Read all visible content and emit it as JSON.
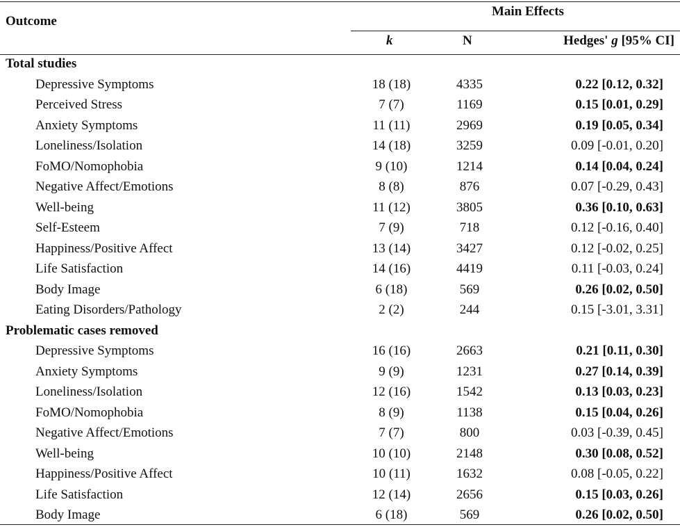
{
  "header": {
    "outcome": "Outcome",
    "main_effects": "Main Effects",
    "k": "k",
    "n": "N",
    "g_prefix": "Hedges' ",
    "g_italic": "g",
    "g_suffix": " [95% CI]"
  },
  "rows": [
    {
      "type": "section",
      "outcome": "Total studies"
    },
    {
      "type": "data",
      "outcome": "Depressive Symptoms",
      "k": "18 (18)",
      "n": "4335",
      "g": "0.22 [0.12, 0.32]",
      "significant": true
    },
    {
      "type": "data",
      "outcome": "Perceived Stress",
      "k": "7 (7)",
      "n": "1169",
      "g": "0.15 [0.01, 0.29]",
      "significant": true
    },
    {
      "type": "data",
      "outcome": "Anxiety Symptoms",
      "k": "11 (11)",
      "n": "2969",
      "g": "0.19 [0.05, 0.34]",
      "significant": true
    },
    {
      "type": "data",
      "outcome": "Loneliness/Isolation",
      "k": "14 (18)",
      "n": "3259",
      "g": "0.09 [-0.01, 0.20]",
      "significant": false
    },
    {
      "type": "data",
      "outcome": "FoMO/Nomophobia",
      "k": "9 (10)",
      "n": "1214",
      "g": "0.14 [0.04, 0.24]",
      "significant": true
    },
    {
      "type": "data",
      "outcome": "Negative Affect/Emotions",
      "k": "8 (8)",
      "n": "876",
      "g": "0.07 [-0.29, 0.43]",
      "significant": false
    },
    {
      "type": "data",
      "outcome": "Well-being",
      "k": "11 (12)",
      "n": "3805",
      "g": "0.36 [0.10, 0.63]",
      "significant": true
    },
    {
      "type": "data",
      "outcome": "Self-Esteem",
      "k": "7 (9)",
      "n": "718",
      "g": "0.12 [-0.16, 0.40]",
      "significant": false
    },
    {
      "type": "data",
      "outcome": "Happiness/Positive Affect",
      "k": "13 (14)",
      "n": "3427",
      "g": "0.12 [-0.02, 0.25]",
      "significant": false
    },
    {
      "type": "data",
      "outcome": "Life Satisfaction",
      "k": "14 (16)",
      "n": "4419",
      "g": "0.11 [-0.03, 0.24]",
      "significant": false
    },
    {
      "type": "data",
      "outcome": "Body Image",
      "k": "6 (18)",
      "n": "569",
      "g": "0.26 [0.02, 0.50]",
      "significant": true
    },
    {
      "type": "data",
      "outcome": "Eating Disorders/Pathology",
      "k": "2 (2)",
      "n": "244",
      "g": "0.15 [-3.01, 3.31]",
      "significant": false
    },
    {
      "type": "section",
      "outcome": "Problematic cases removed"
    },
    {
      "type": "data",
      "outcome": "Depressive Symptoms",
      "k": "16 (16)",
      "n": "2663",
      "g": "0.21 [0.11, 0.30]",
      "significant": true
    },
    {
      "type": "data",
      "outcome": "Anxiety Symptoms",
      "k": "9 (9)",
      "n": "1231",
      "g": "0.27 [0.14, 0.39]",
      "significant": true
    },
    {
      "type": "data",
      "outcome": "Loneliness/Isolation",
      "k": "12 (16)",
      "n": "1542",
      "g": "0.13 [0.03, 0.23]",
      "significant": true
    },
    {
      "type": "data",
      "outcome": "FoMO/Nomophobia",
      "k": "8 (9)",
      "n": "1138",
      "g": "0.15 [0.04, 0.26]",
      "significant": true
    },
    {
      "type": "data",
      "outcome": "Negative Affect/Emotions",
      "k": "7 (7)",
      "n": "800",
      "g": "0.03 [-0.39, 0.45]",
      "significant": false
    },
    {
      "type": "data",
      "outcome": "Well-being",
      "k": "10 (10)",
      "n": "2148",
      "g": "0.30 [0.08, 0.52]",
      "significant": true
    },
    {
      "type": "data",
      "outcome": "Happiness/Positive Affect",
      "k": "10 (11)",
      "n": "1632",
      "g": "0.08 [-0.05, 0.22]",
      "significant": false
    },
    {
      "type": "data",
      "outcome": "Life Satisfaction",
      "k": "12 (14)",
      "n": "2656",
      "g": "0.15 [0.03, 0.26]",
      "significant": true
    },
    {
      "type": "data",
      "outcome": "Body Image",
      "k": "6 (18)",
      "n": "569",
      "g": "0.26 [0.02, 0.50]",
      "significant": true
    }
  ]
}
